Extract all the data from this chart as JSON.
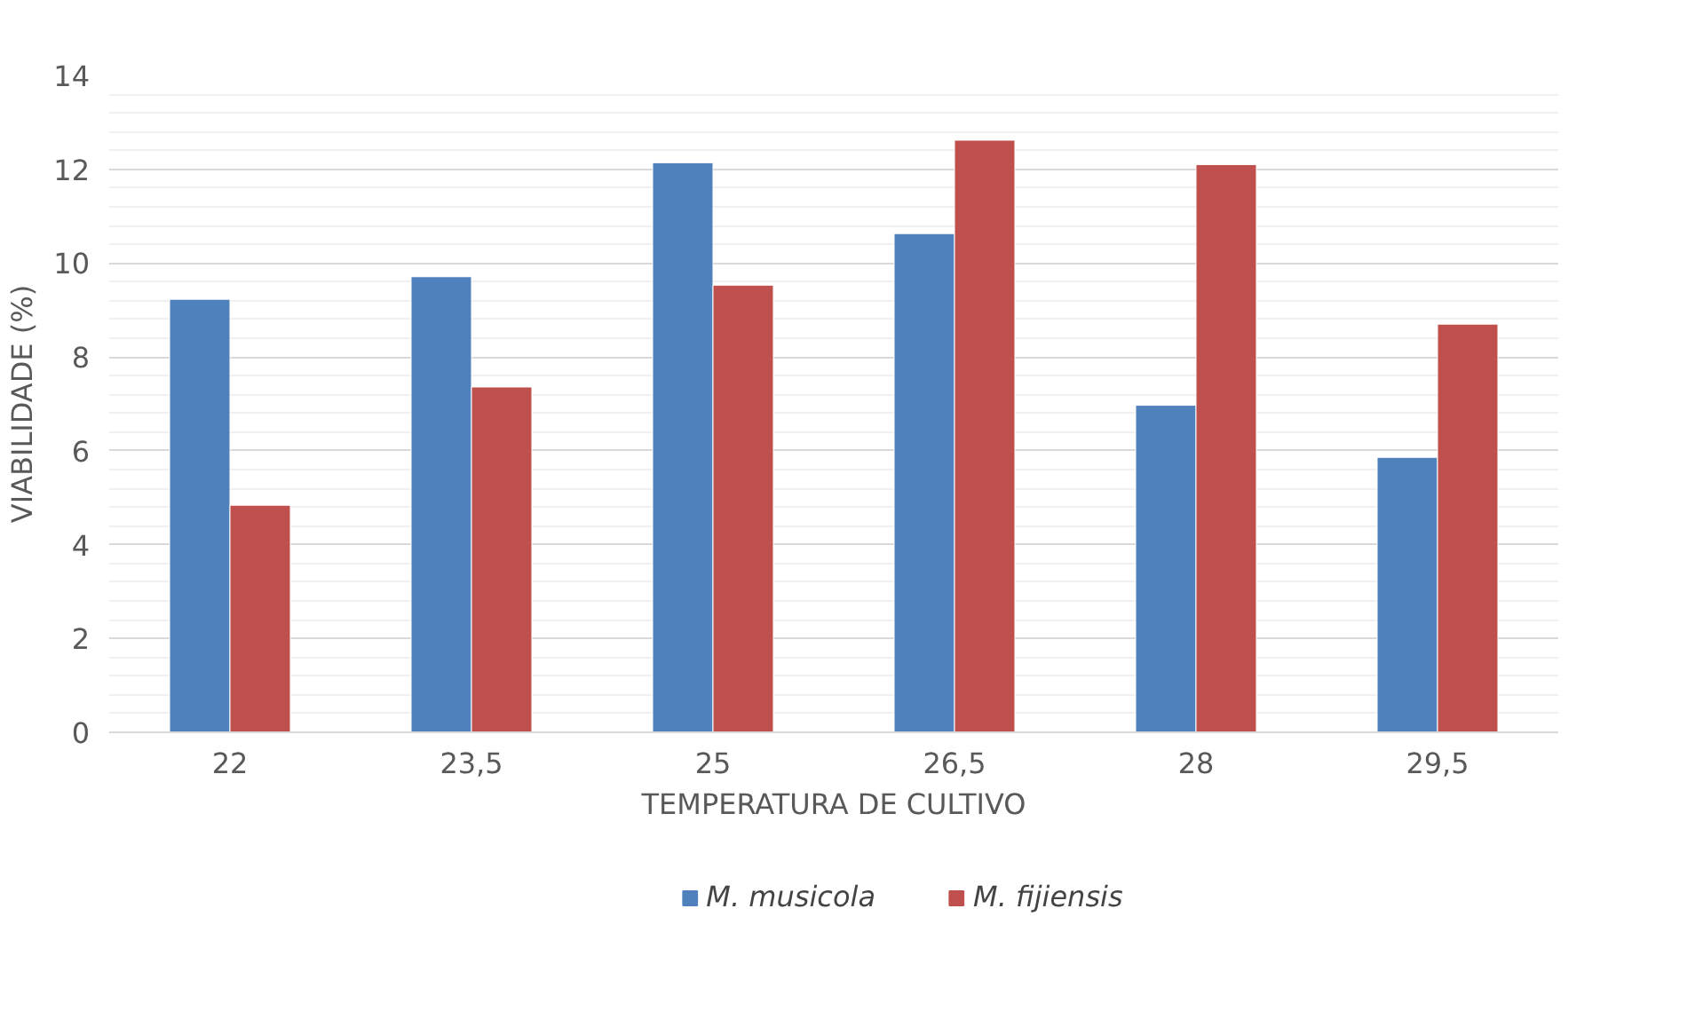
{
  "chart_data": {
    "type": "bar",
    "xlabel": "TEMPERATURA DE CULTIVO",
    "ylabel": "VIABILIDADE (%)",
    "categories": [
      "22",
      "23,5",
      "25",
      "26,5",
      "28",
      "29,5"
    ],
    "series": [
      {
        "name": "M. musicola",
        "color": "#4f81bd",
        "values": [
          9.23,
          9.71,
          12.14,
          10.63,
          6.97,
          5.86
        ]
      },
      {
        "name": "M. fijiensis",
        "color": "#c0504d",
        "values": [
          4.84,
          7.36,
          9.53,
          12.62,
          12.1,
          8.7
        ]
      }
    ],
    "ylim": [
      0,
      14
    ],
    "yticks": [
      0,
      2,
      4,
      6,
      8,
      10,
      12,
      14
    ],
    "grid": "y",
    "legend": "bottom"
  }
}
